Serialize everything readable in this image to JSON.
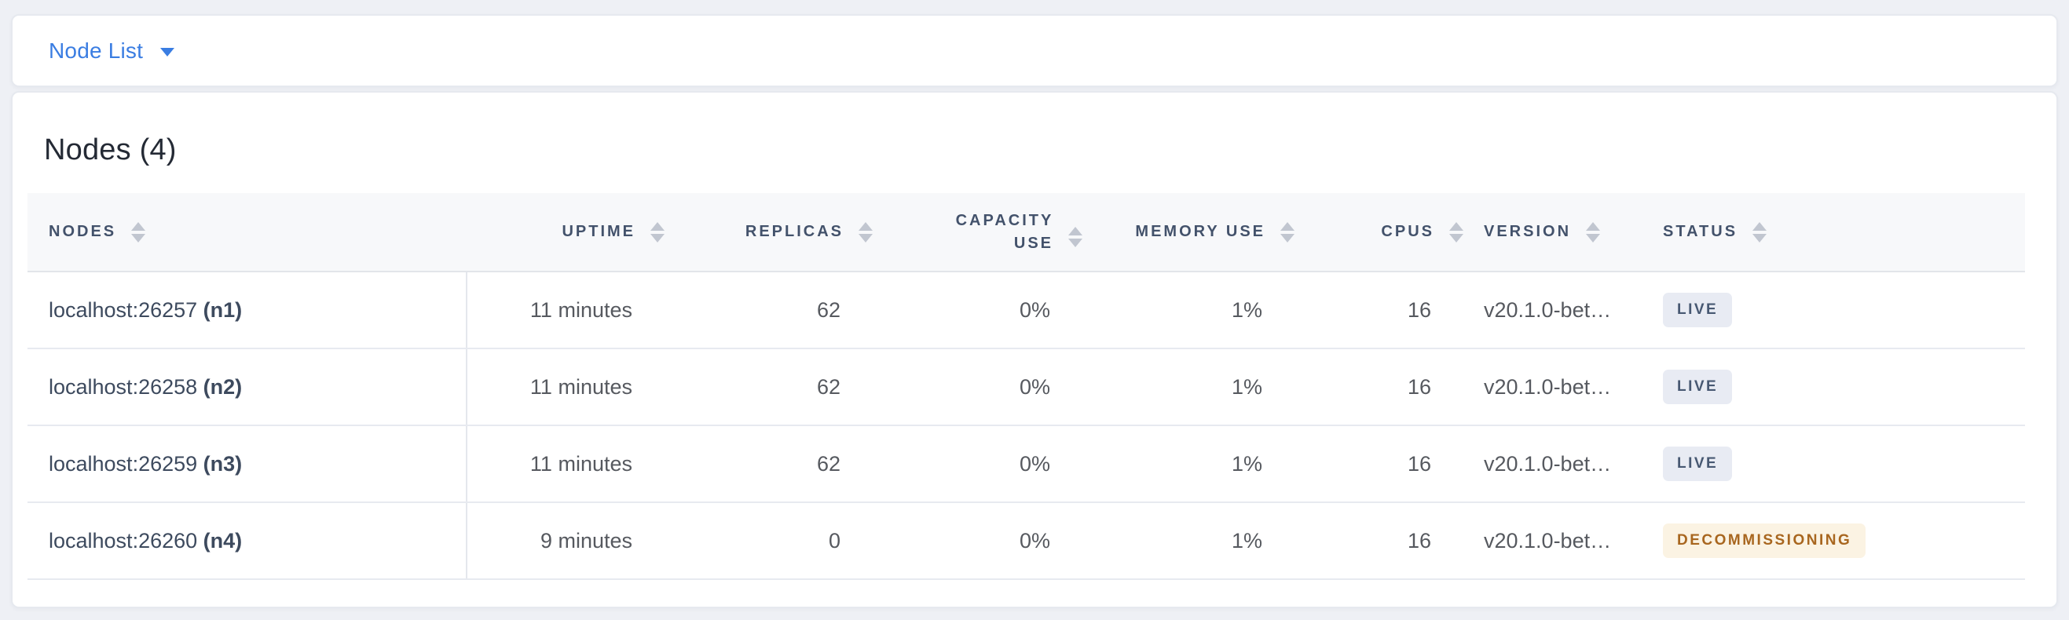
{
  "colors": {
    "page_bg": "#eef0f5",
    "card_bg": "#ffffff",
    "card_border": "#e6e9ef",
    "accent_blue": "#3a7de2",
    "title_text": "#242a35",
    "header_text": "#43526b",
    "header_bg": "#f7f8fa",
    "header_border": "#e2e5ea",
    "row_border": "#e7eaf0",
    "divider": "#e4e7ed",
    "cell_text": "#56595f",
    "node_text": "#3d4a5e",
    "sort_icon": "#c1c6d0",
    "status_live_bg": "#e8ebf3",
    "status_live_text": "#475872",
    "status_decommissioning_bg": "#fbf3e3",
    "status_decommissioning_text": "#a8661f"
  },
  "topbar": {
    "view_label": "Node List",
    "caret_icon": "caret-down-icon"
  },
  "panel": {
    "title": "Nodes (4)"
  },
  "table": {
    "columns": [
      {
        "key": "nodes",
        "label": "NODES",
        "align": "left",
        "sortable": true,
        "sort_icon": "sort-icon"
      },
      {
        "key": "uptime",
        "label": "UPTIME",
        "align": "right",
        "sortable": true,
        "sort_icon": "sort-icon"
      },
      {
        "key": "replicas",
        "label": "REPLICAS",
        "align": "right",
        "sortable": true,
        "sort_icon": "sort-icon"
      },
      {
        "key": "capacity_use",
        "label": "CAPACITY USE",
        "align": "right",
        "sortable": true,
        "sort_icon": "sort-icon"
      },
      {
        "key": "memory_use",
        "label": "MEMORY USE",
        "align": "right",
        "sortable": true,
        "sort_icon": "sort-icon"
      },
      {
        "key": "cpus",
        "label": "CPUS",
        "align": "right",
        "sortable": true,
        "sort_icon": "sort-icon"
      },
      {
        "key": "version",
        "label": "VERSION",
        "align": "left",
        "sortable": true,
        "sort_icon": "sort-icon"
      },
      {
        "key": "status",
        "label": "STATUS",
        "align": "left",
        "sortable": true,
        "sort_icon": "sort-icon"
      }
    ],
    "rows": [
      {
        "address": "localhost:26257",
        "node_id": "(n1)",
        "uptime": "11 minutes",
        "replicas": "62",
        "capacity_use": "0%",
        "memory_use": "1%",
        "cpus": "16",
        "version": "v20.1.0-bet…",
        "status": {
          "label": "LIVE",
          "variant": "live"
        }
      },
      {
        "address": "localhost:26258",
        "node_id": "(n2)",
        "uptime": "11 minutes",
        "replicas": "62",
        "capacity_use": "0%",
        "memory_use": "1%",
        "cpus": "16",
        "version": "v20.1.0-bet…",
        "status": {
          "label": "LIVE",
          "variant": "live"
        }
      },
      {
        "address": "localhost:26259",
        "node_id": "(n3)",
        "uptime": "11 minutes",
        "replicas": "62",
        "capacity_use": "0%",
        "memory_use": "1%",
        "cpus": "16",
        "version": "v20.1.0-bet…",
        "status": {
          "label": "LIVE",
          "variant": "live"
        }
      },
      {
        "address": "localhost:26260",
        "node_id": "(n4)",
        "uptime": "9 minutes",
        "replicas": "0",
        "capacity_use": "0%",
        "memory_use": "1%",
        "cpus": "16",
        "version": "v20.1.0-bet…",
        "status": {
          "label": "DECOMMISSIONING",
          "variant": "decommissioning"
        }
      }
    ]
  }
}
